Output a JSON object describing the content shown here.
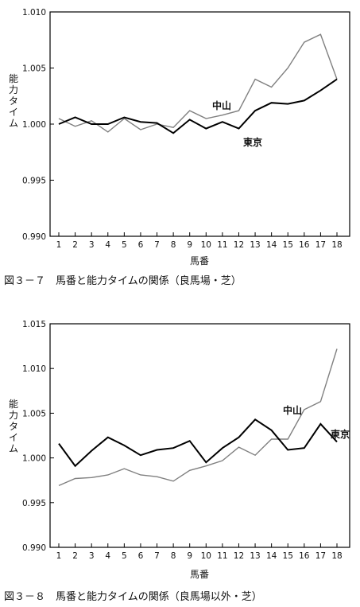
{
  "chart_data": [
    {
      "type": "line",
      "title": "図３－７　馬番と能力タイムの関係（良馬場・芝）",
      "xlabel": "馬番",
      "ylabel": "能力タイム",
      "categories": [
        "1",
        "2",
        "3",
        "4",
        "5",
        "6",
        "7",
        "8",
        "9",
        "10",
        "11",
        "12",
        "13",
        "14",
        "15",
        "16",
        "17",
        "18"
      ],
      "ylim": [
        0.99,
        1.01
      ],
      "yticks": [
        "0.990",
        "0.995",
        "1.000",
        "1.005",
        "1.010"
      ],
      "grid": false,
      "series": [
        {
          "name": "中山",
          "color": "#808080",
          "values": [
            1.0005,
            0.9998,
            1.0003,
            0.9993,
            1.0005,
            0.9995,
            1.0,
            0.9997,
            1.0012,
            1.0005,
            1.0008,
            1.0012,
            1.004,
            1.0033,
            1.005,
            1.0073,
            1.008,
            1.004
          ]
        },
        {
          "name": "東京",
          "color": "#000000",
          "values": [
            1.0,
            1.0006,
            1.0,
            1.0,
            1.0006,
            1.0002,
            1.0001,
            0.9992,
            1.0004,
            0.9996,
            1.0002,
            0.9996,
            1.0012,
            1.0019,
            1.0018,
            1.0021,
            1.003,
            1.004
          ]
        }
      ]
    },
    {
      "type": "line",
      "title": "図３－８　馬番と能力タイムの関係（良馬場以外・芝）",
      "xlabel": "馬番",
      "ylabel": "能力タイム",
      "categories": [
        "1",
        "2",
        "3",
        "4",
        "5",
        "6",
        "7",
        "8",
        "9",
        "10",
        "11",
        "12",
        "13",
        "14",
        "15",
        "16",
        "17",
        "18"
      ],
      "ylim": [
        0.99,
        1.015
      ],
      "yticks": [
        "0.990",
        "0.995",
        "1.000",
        "1.005",
        "1.010",
        "1.015"
      ],
      "grid": false,
      "series": [
        {
          "name": "中山",
          "color": "#808080",
          "values": [
            0.9969,
            0.9977,
            0.9978,
            0.9981,
            0.9988,
            0.9981,
            0.9979,
            0.9974,
            0.9986,
            0.9991,
            0.9997,
            1.0012,
            1.0003,
            1.0021,
            1.0021,
            1.0054,
            1.0063,
            1.0122
          ]
        },
        {
          "name": "東京",
          "color": "#000000",
          "values": [
            1.0016,
            0.9991,
            1.0008,
            1.0023,
            1.0014,
            1.0003,
            1.0009,
            1.0011,
            1.0019,
            0.9995,
            1.0011,
            1.0023,
            1.0043,
            1.0031,
            1.0009,
            1.0011,
            1.0038,
            1.0018
          ]
        }
      ]
    }
  ]
}
